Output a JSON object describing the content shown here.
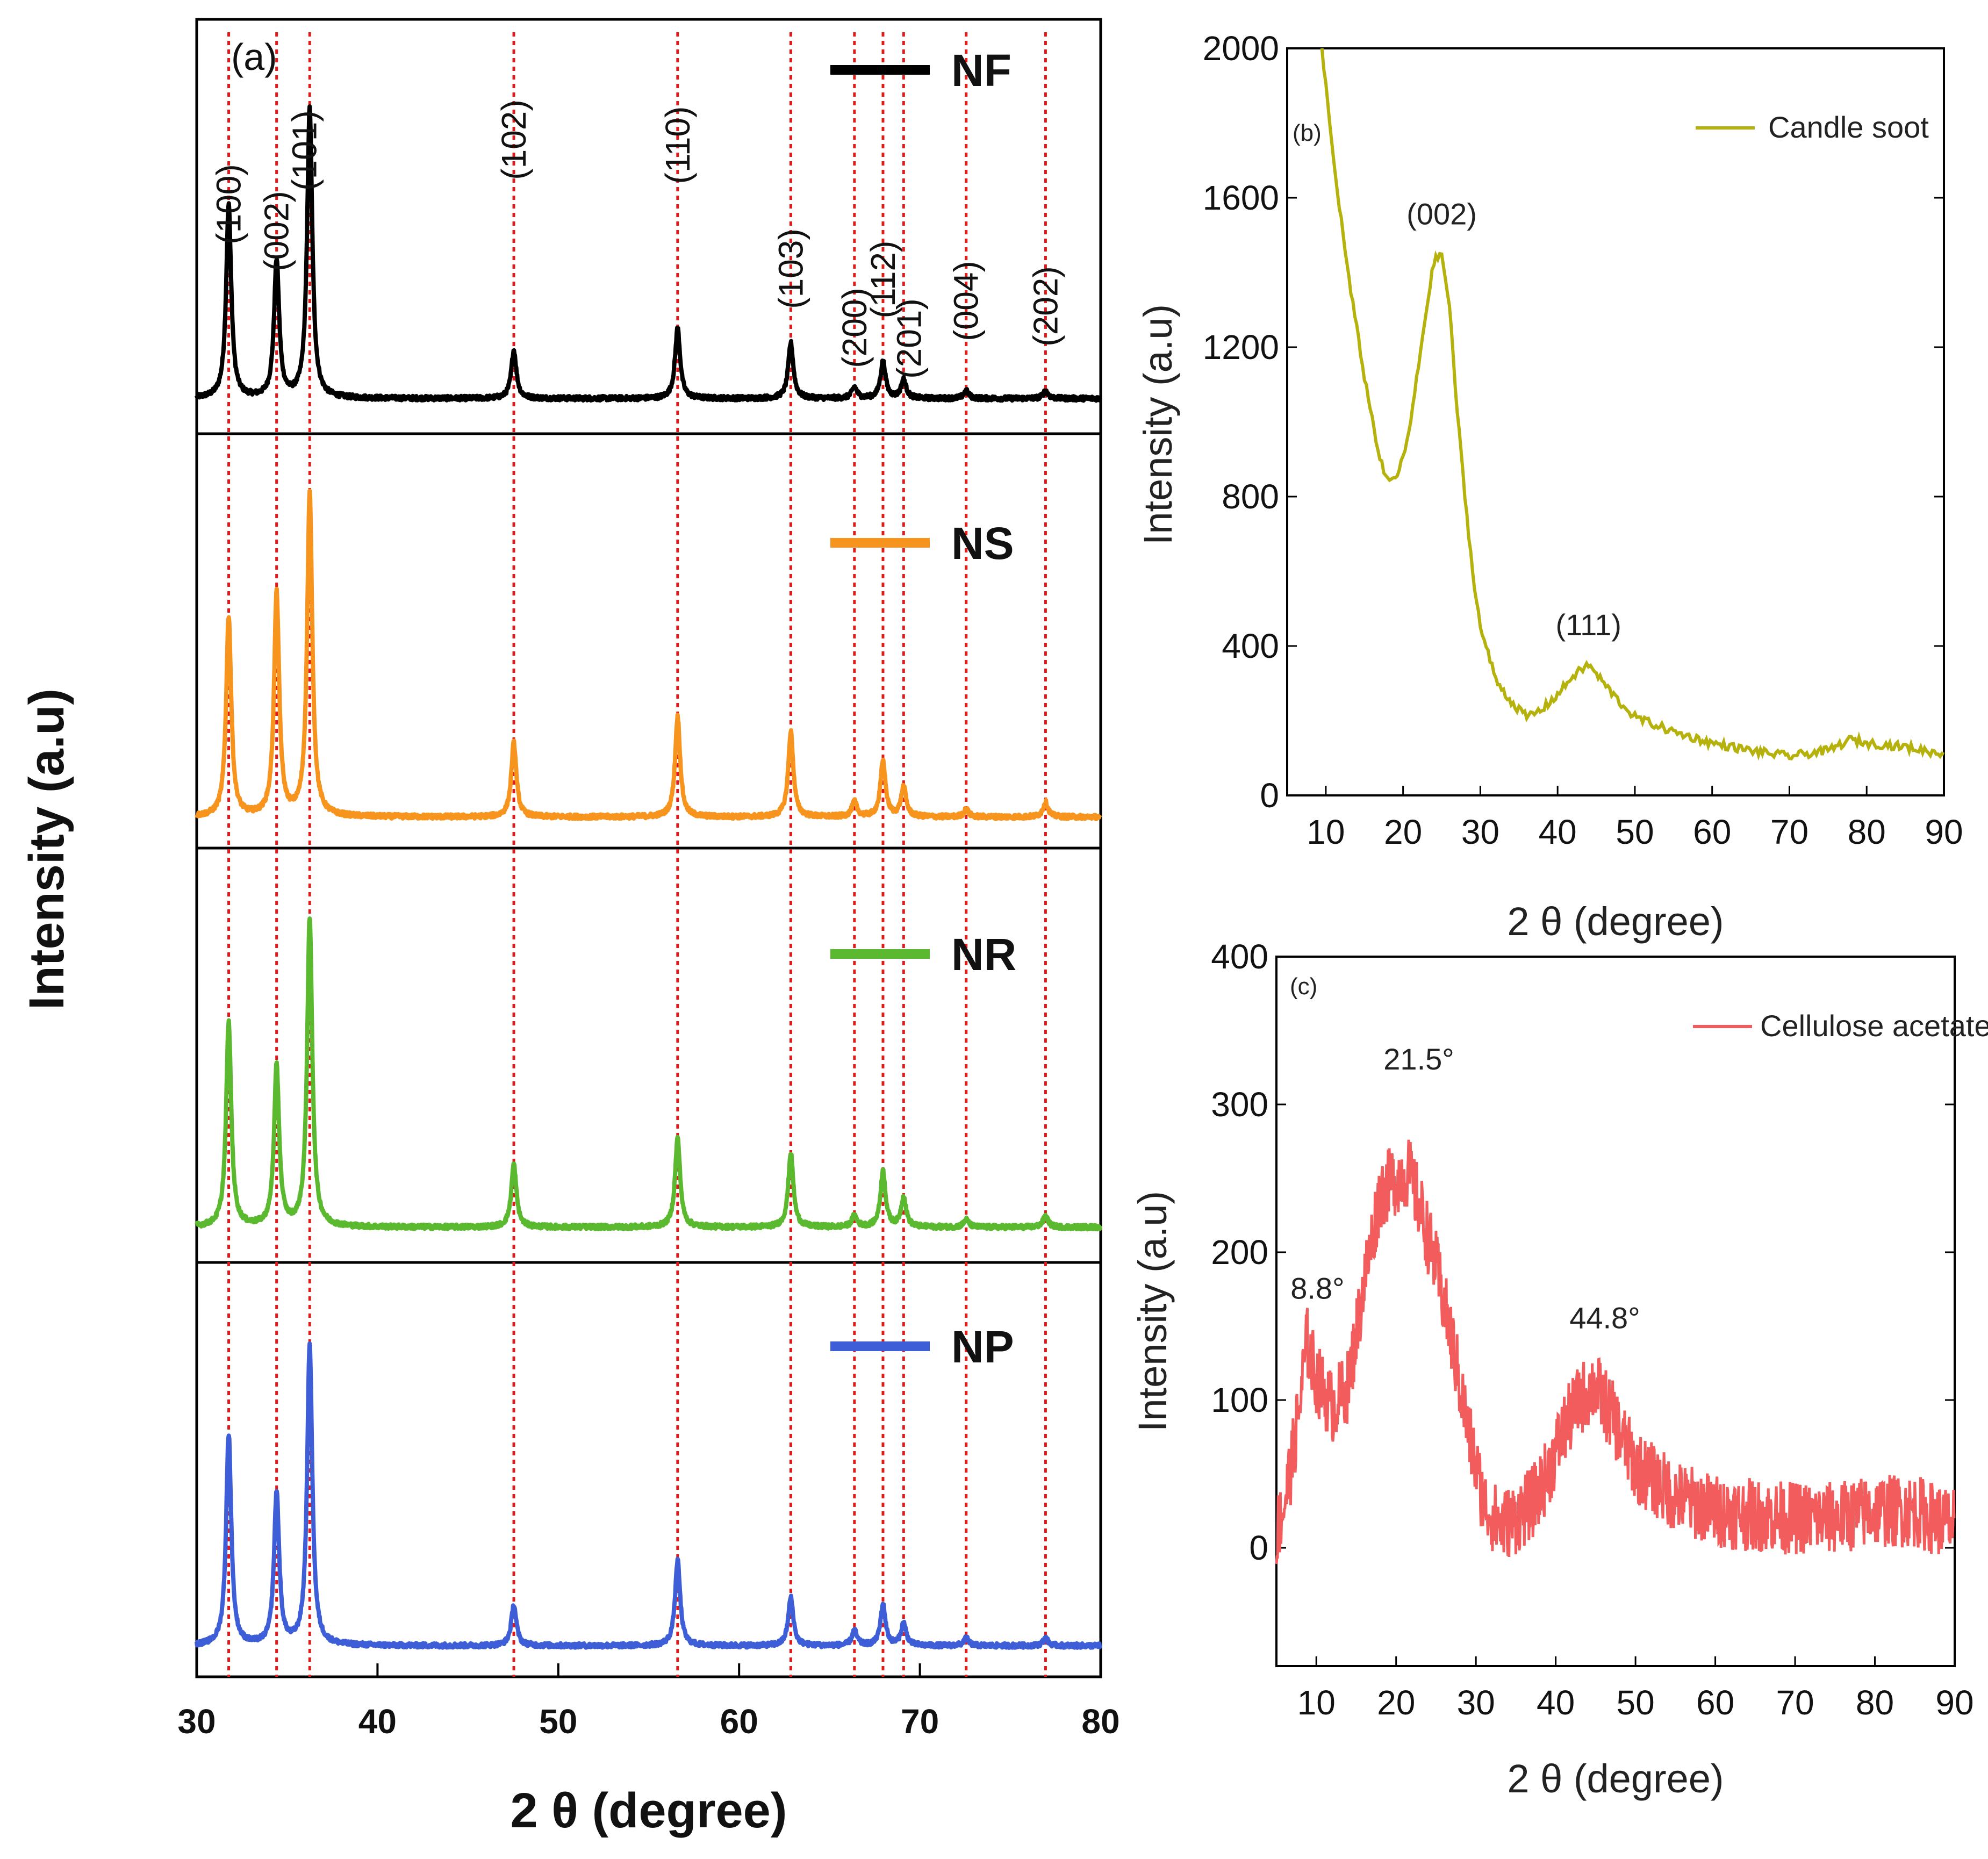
{
  "chart_data": [
    {
      "panel": "(a)",
      "type": "line",
      "title": "",
      "xlabel": "2 θ (degree)",
      "ylabel": "Intensity (a.u)",
      "xlim": [
        30,
        80
      ],
      "xticks": [
        30,
        40,
        50,
        60,
        70,
        80
      ],
      "stacked": true,
      "series": [
        {
          "name": "NF",
          "color": "#000000",
          "peaks": [
            [
              31.77,
              0.52
            ],
            [
              34.42,
              0.37
            ],
            [
              36.25,
              0.78
            ],
            [
              47.54,
              0.13
            ],
            [
              56.6,
              0.19
            ],
            [
              62.86,
              0.15
            ],
            [
              66.38,
              0.03
            ],
            [
              67.96,
              0.1
            ],
            [
              69.1,
              0.05
            ],
            [
              72.56,
              0.02
            ],
            [
              76.95,
              0.02
            ]
          ]
        },
        {
          "name": "NS",
          "color": "#f7941d",
          "peaks": [
            [
              31.77,
              0.54
            ],
            [
              34.42,
              0.6
            ],
            [
              36.25,
              0.87
            ],
            [
              47.54,
              0.2
            ],
            [
              56.6,
              0.27
            ],
            [
              62.86,
              0.23
            ],
            [
              66.38,
              0.04
            ],
            [
              67.96,
              0.15
            ],
            [
              69.1,
              0.08
            ],
            [
              72.56,
              0.02
            ],
            [
              76.95,
              0.04
            ]
          ]
        },
        {
          "name": "NR",
          "color": "#5ab92e",
          "peaks": [
            [
              31.77,
              0.55
            ],
            [
              34.42,
              0.43
            ],
            [
              36.25,
              0.83
            ],
            [
              47.54,
              0.17
            ],
            [
              56.6,
              0.24
            ],
            [
              62.86,
              0.2
            ],
            [
              66.38,
              0.03
            ],
            [
              67.96,
              0.15
            ],
            [
              69.1,
              0.08
            ],
            [
              72.56,
              0.02
            ],
            [
              76.95,
              0.03
            ]
          ]
        },
        {
          "name": "NP",
          "color": "#3d5ed6",
          "peaks": [
            [
              31.77,
              0.57
            ],
            [
              34.42,
              0.41
            ],
            [
              36.25,
              0.81
            ],
            [
              47.54,
              0.11
            ],
            [
              56.6,
              0.23
            ],
            [
              62.86,
              0.13
            ],
            [
              66.38,
              0.04
            ],
            [
              67.96,
              0.11
            ],
            [
              69.1,
              0.06
            ],
            [
              72.56,
              0.02
            ],
            [
              76.95,
              0.02
            ]
          ]
        }
      ],
      "reference_lines": [
        31.77,
        34.42,
        36.25,
        47.54,
        56.6,
        62.86,
        66.38,
        67.96,
        69.1,
        72.56,
        76.95
      ],
      "reflections": [
        {
          "hkl": "(100)",
          "x": 31.77
        },
        {
          "hkl": "(002)",
          "x": 34.42
        },
        {
          "hkl": "(101)",
          "x": 36.25
        },
        {
          "hkl": "(102)",
          "x": 47.54
        },
        {
          "hkl": "(110)",
          "x": 56.6
        },
        {
          "hkl": "(103)",
          "x": 62.86
        },
        {
          "hkl": "(200)",
          "x": 66.38
        },
        {
          "hkl": "(112)",
          "x": 67.96
        },
        {
          "hkl": "(201)",
          "x": 69.1
        },
        {
          "hkl": "(004)",
          "x": 72.56
        },
        {
          "hkl": "(202)",
          "x": 76.95
        }
      ]
    },
    {
      "panel": "(b)",
      "type": "line",
      "xlabel": "2 θ (degree)",
      "ylabel": "Intensity (a.u)",
      "xlim": [
        5,
        90
      ],
      "ylim": [
        0,
        2000
      ],
      "xticks": [
        10,
        20,
        30,
        40,
        50,
        60,
        70,
        80,
        90
      ],
      "yticks": [
        0,
        400,
        800,
        1200,
        1600,
        2000
      ],
      "series": [
        {
          "name": "Candle soot",
          "color": "#b5b20d",
          "x": [
            9.5,
            11,
            13,
            15,
            17,
            18,
            19,
            20,
            21,
            22,
            23,
            24,
            25,
            26,
            27,
            28,
            29,
            30,
            32,
            34,
            36,
            38,
            40,
            42,
            44,
            46,
            48,
            50,
            55,
            60,
            65,
            70,
            75,
            78,
            80,
            85,
            90
          ],
          "y": [
            2000,
            1700,
            1380,
            1120,
            900,
            840,
            850,
            900,
            1000,
            1150,
            1300,
            1430,
            1450,
            1310,
            1030,
            800,
            600,
            450,
            310,
            250,
            210,
            230,
            270,
            320,
            350,
            300,
            250,
            210,
            170,
            140,
            120,
            105,
            120,
            150,
            140,
            130,
            110
          ]
        }
      ],
      "annotations": [
        {
          "text": "(002)",
          "x": 25,
          "y": 1450
        },
        {
          "text": "(111)",
          "x": 44,
          "y": 350
        }
      ]
    },
    {
      "panel": "(c)",
      "type": "line",
      "xlabel": "2 θ (degree)",
      "ylabel": "Intensity (a.u)",
      "xlim": [
        5,
        90
      ],
      "ylim": [
        -80,
        400
      ],
      "xticks": [
        10,
        20,
        30,
        40,
        50,
        60,
        70,
        80,
        90
      ],
      "yticks": [
        0,
        100,
        200,
        300,
        400
      ],
      "series": [
        {
          "name": "Cellulose acetate",
          "color": "#f25c5c",
          "x": [
            5,
            6,
            7,
            8,
            8.8,
            10,
            12,
            14,
            16,
            18,
            20,
            21.5,
            23,
            25,
            27,
            29,
            31,
            33,
            35,
            37,
            39,
            41,
            43,
            44.8,
            47,
            50,
            55,
            60,
            65,
            70,
            75,
            80,
            85,
            90
          ],
          "y": [
            10,
            30,
            60,
            100,
            140,
            115,
            95,
            110,
            180,
            240,
            250,
            255,
            230,
            190,
            140,
            80,
            30,
            15,
            20,
            30,
            50,
            80,
            100,
            110,
            90,
            55,
            35,
            25,
            22,
            20,
            20,
            25,
            25,
            15
          ],
          "noise_amplitude": 25
        }
      ],
      "annotations": [
        {
          "text": "8.8°",
          "x": 8.8,
          "y": 165
        },
        {
          "text": "21.5°",
          "x": 21.5,
          "y": 320
        },
        {
          "text": "44.8°",
          "x": 44.8,
          "y": 145
        }
      ]
    }
  ],
  "labels": {
    "a_tag": "(a)",
    "b_tag": "(b)",
    "c_tag": "(c)",
    "a_xlabel": "2 θ (degree)",
    "a_ylabel": "Intensity (a.u)",
    "b_xlabel": "2 θ (degree)",
    "b_ylabel": "Intensity (a.u)",
    "c_xlabel": "2 θ (degree)",
    "c_ylabel": "Intensity (a.u)",
    "b_legend": "Candle soot",
    "c_legend": "Cellulose acetate"
  }
}
